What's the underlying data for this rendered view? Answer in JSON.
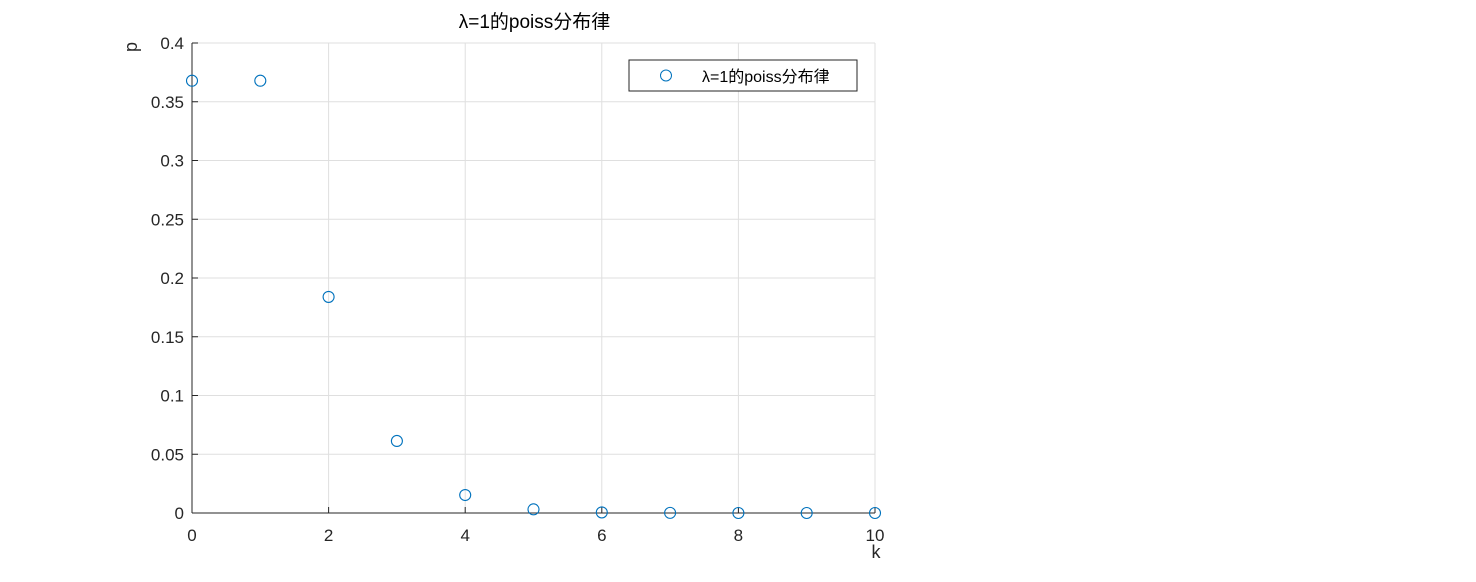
{
  "chart_data": {
    "type": "scatter",
    "title": "λ=1的poiss分布律",
    "xlabel": "k",
    "ylabel": "p",
    "xlim": [
      0,
      10
    ],
    "ylim": [
      0,
      0.4
    ],
    "xticks": [
      "0",
      "2",
      "4",
      "6",
      "8",
      "10"
    ],
    "yticks": [
      "0",
      "0.05",
      "0.1",
      "0.15",
      "0.2",
      "0.25",
      "0.3",
      "0.35",
      "0.4"
    ],
    "grid": true,
    "legend_position": "top-right",
    "marker": "circle-open",
    "series": [
      {
        "name": "λ=1的poiss分布律",
        "color": "#0072BD",
        "x": [
          0,
          1,
          2,
          3,
          4,
          5,
          6,
          7,
          8,
          9,
          10
        ],
        "y": [
          0.3679,
          0.3679,
          0.1839,
          0.0613,
          0.0153,
          0.0031,
          0.0005,
          0.0001,
          0.0,
          0.0,
          0.0
        ]
      }
    ]
  }
}
